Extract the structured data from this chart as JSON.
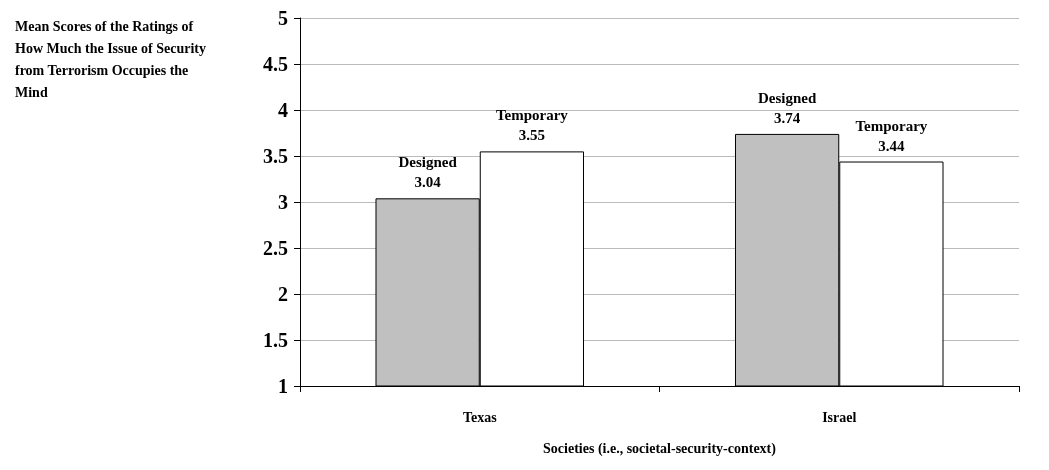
{
  "chart_data": {
    "type": "bar",
    "ylabel": "Mean Scores of the Ratings of How Much the Issue of Security from Terrorism Occupies the Mind",
    "xlabel": "Societies (i.e., societal-security-context)",
    "categories": [
      "Texas",
      "Israel"
    ],
    "series": [
      {
        "name": "Designed",
        "color": "#c0c0c0",
        "values": [
          3.04,
          3.74
        ]
      },
      {
        "name": "Temporary",
        "color": "#ffffff",
        "values": [
          3.55,
          3.44
        ]
      }
    ],
    "ylim": [
      1,
      5
    ],
    "yticks": [
      1,
      1.5,
      2,
      2.5,
      3,
      3.5,
      4,
      4.5,
      5
    ],
    "grid": "y",
    "legend": false,
    "data_labels": true
  }
}
